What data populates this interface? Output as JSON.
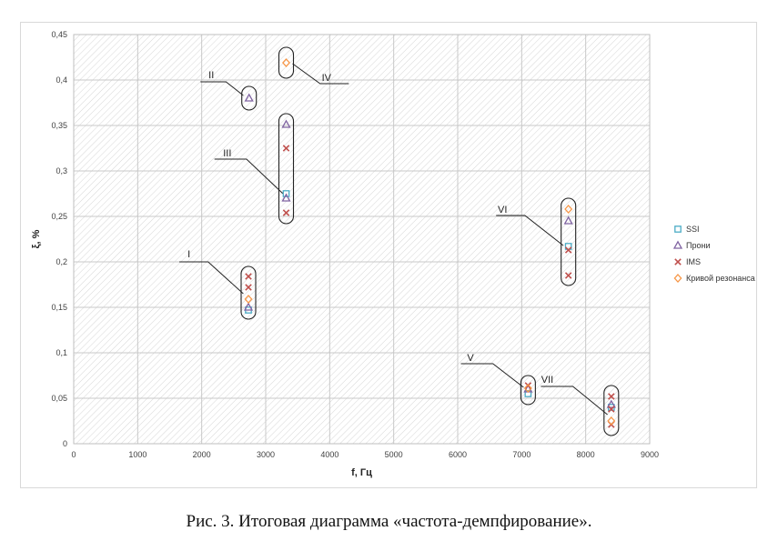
{
  "caption": "Рис. 3. Итоговая диаграмма «частота-демпфирование».",
  "chart_data": {
    "type": "scatter",
    "xlabel": "f, Гц",
    "ylabel": "ξ, %",
    "xlim": [
      0,
      9000
    ],
    "ylim": [
      0,
      0.45
    ],
    "x_ticks": [
      "0",
      "1000",
      "2000",
      "3000",
      "4000",
      "5000",
      "6000",
      "7000",
      "8000",
      "9000"
    ],
    "y_ticks": [
      "0",
      "0,05",
      "0,1",
      "0,15",
      "0,2",
      "0,25",
      "0,3",
      "0,35",
      "0,4",
      "0,45"
    ],
    "grid": true,
    "legend_position": "right",
    "series": [
      {
        "name": "SSI",
        "marker": "square",
        "color": "#4bacc6",
        "points": [
          [
            2730,
            0.147
          ],
          [
            3320,
            0.275
          ],
          [
            7100,
            0.055
          ],
          [
            7730,
            0.217
          ],
          [
            8400,
            0.04
          ]
        ]
      },
      {
        "name": "Прони",
        "marker": "triangle",
        "color": "#8064a2",
        "points": [
          [
            2730,
            0.15
          ],
          [
            2740,
            0.38
          ],
          [
            3320,
            0.27
          ],
          [
            3320,
            0.351
          ],
          [
            7100,
            0.06
          ],
          [
            7730,
            0.245
          ],
          [
            8400,
            0.043
          ]
        ]
      },
      {
        "name": "IMS",
        "marker": "x",
        "color": "#c0504d",
        "points": [
          [
            2730,
            0.184
          ],
          [
            2730,
            0.172
          ],
          [
            3320,
            0.325
          ],
          [
            3320,
            0.254
          ],
          [
            7100,
            0.064
          ],
          [
            7730,
            0.185
          ],
          [
            7730,
            0.213
          ],
          [
            8400,
            0.052
          ],
          [
            8400,
            0.038
          ],
          [
            8400,
            0.021
          ]
        ]
      },
      {
        "name": "Кривой резонанса",
        "marker": "diamond",
        "color": "#f79646",
        "points": [
          [
            2730,
            0.159
          ],
          [
            3320,
            0.419
          ],
          [
            7100,
            0.061
          ],
          [
            7730,
            0.258
          ],
          [
            8400,
            0.025
          ]
        ]
      }
    ],
    "groups": [
      {
        "label": "I",
        "x": 2730,
        "y_range": [
          0.145,
          0.187
        ],
        "label_pos": [
          1800,
          0.205
        ],
        "line": [
          [
            1650,
            0.2
          ],
          [
            2100,
            0.2
          ],
          [
            2650,
            0.165
          ]
        ]
      },
      {
        "label": "II",
        "x": 2740,
        "y_range": [
          0.375,
          0.385
        ],
        "label_pos": [
          2150,
          0.402
        ],
        "line": [
          [
            1980,
            0.398
          ],
          [
            2380,
            0.398
          ],
          [
            2650,
            0.383
          ]
        ]
      },
      {
        "label": "III",
        "x": 3320,
        "y_range": [
          0.25,
          0.355
        ],
        "label_pos": [
          2400,
          0.316
        ],
        "line": [
          [
            2200,
            0.313
          ],
          [
            2700,
            0.313
          ],
          [
            3270,
            0.275
          ]
        ]
      },
      {
        "label": "IV",
        "x": 3320,
        "y_range": [
          0.41,
          0.428
        ],
        "label_pos": [
          3950,
          0.399
        ],
        "line": [
          [
            4300,
            0.396
          ],
          [
            3850,
            0.396
          ],
          [
            3420,
            0.418
          ]
        ]
      },
      {
        "label": "V",
        "x": 7100,
        "y_range": [
          0.051,
          0.067
        ],
        "label_pos": [
          6200,
          0.091
        ],
        "line": [
          [
            6050,
            0.088
          ],
          [
            6550,
            0.088
          ],
          [
            7030,
            0.062
          ]
        ]
      },
      {
        "label": "VI",
        "x": 7730,
        "y_range": [
          0.182,
          0.262
        ],
        "label_pos": [
          6700,
          0.254
        ],
        "line": [
          [
            6600,
            0.251
          ],
          [
            7050,
            0.251
          ],
          [
            7650,
            0.218
          ]
        ]
      },
      {
        "label": "VII",
        "x": 8400,
        "y_range": [
          0.017,
          0.056
        ],
        "label_pos": [
          7400,
          0.067
        ],
        "line": [
          [
            7300,
            0.063
          ],
          [
            7800,
            0.063
          ],
          [
            8340,
            0.032
          ]
        ]
      }
    ]
  }
}
